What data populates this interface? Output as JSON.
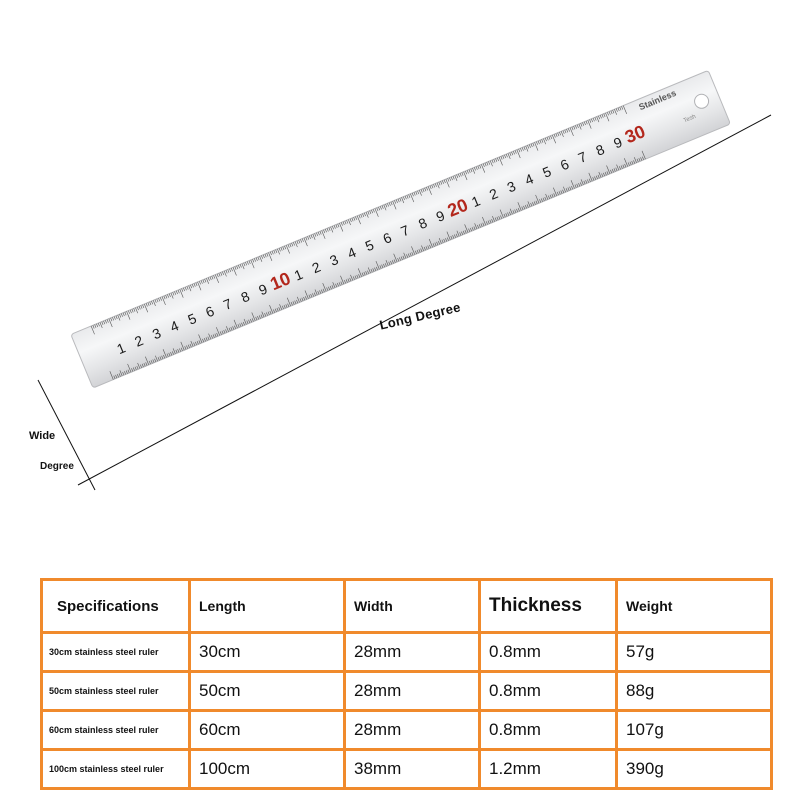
{
  "ruler": {
    "brand": "Stainless",
    "sub_brand": "Tesh",
    "max_cm": 30,
    "highlight_color": "#b3271c",
    "number_color": "#1a1a1a"
  },
  "labels": {
    "wide": "Wide",
    "degree": "Degree",
    "long_degree": "Long  Degree"
  },
  "table": {
    "border_color": "#f08a2c",
    "headers": [
      "Specifications",
      "Length",
      "Width",
      "Thickness",
      "Weight"
    ],
    "rows": [
      [
        "30cm stainless steel ruler",
        "30cm",
        "28mm",
        "0.8mm",
        "57g"
      ],
      [
        "50cm stainless steel ruler",
        "50cm",
        "28mm",
        "0.8mm",
        "88g"
      ],
      [
        "60cm stainless steel ruler",
        "60cm",
        "28mm",
        "0.8mm",
        "107g"
      ],
      [
        "100cm stainless steel ruler",
        "100cm",
        "38mm",
        "1.2mm",
        "390g"
      ]
    ]
  }
}
